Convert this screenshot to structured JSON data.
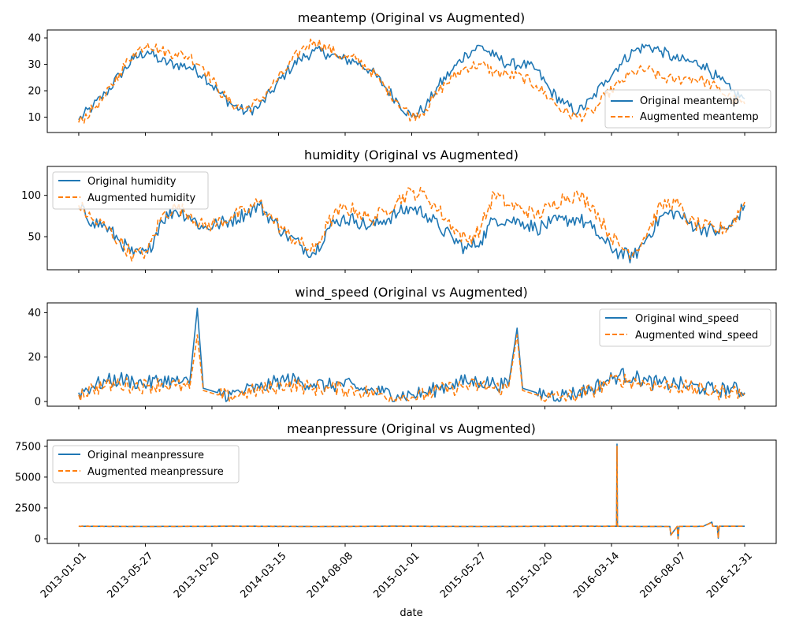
{
  "chart_data": [
    {
      "type": "line",
      "title": "meantemp (Original vs Augmented)",
      "xlabel": "",
      "ylabel": "",
      "xlim": [
        "2012-10-24",
        "2017-03-10"
      ],
      "ylim": [
        4.2,
        43.0
      ],
      "yticks": [
        10,
        20,
        30,
        40
      ],
      "legend": "lower-right",
      "grid": false,
      "series": [
        {
          "name": "Original meantemp",
          "color": "#1f77b4",
          "dash": "solid",
          "x": [
            "2013-01-01",
            "2013-02-01",
            "2013-03-01",
            "2013-04-01",
            "2013-05-01",
            "2013-06-01",
            "2013-07-01",
            "2013-08-01",
            "2013-09-01",
            "2013-10-01",
            "2013-11-01",
            "2013-12-01",
            "2014-01-01",
            "2014-02-01",
            "2014-03-01",
            "2014-04-01",
            "2014-05-01",
            "2014-06-01",
            "2014-07-01",
            "2014-08-01",
            "2014-09-01",
            "2014-10-01",
            "2014-11-01",
            "2014-12-01",
            "2015-01-01",
            "2015-02-01",
            "2015-03-01",
            "2015-04-01",
            "2015-05-01",
            "2015-06-01",
            "2015-07-01",
            "2015-08-01",
            "2015-09-01",
            "2015-10-01",
            "2015-11-01",
            "2015-12-01",
            "2016-01-01",
            "2016-02-01",
            "2016-03-01",
            "2016-04-01",
            "2016-05-01",
            "2016-06-01",
            "2016-07-01",
            "2016-08-01",
            "2016-09-01",
            "2016-10-01",
            "2016-11-01",
            "2016-12-01",
            "2016-12-31"
          ],
          "y": [
            9,
            14,
            19,
            26,
            32,
            35,
            31,
            30,
            29,
            26,
            20,
            15,
            12,
            14,
            20,
            27,
            32,
            35,
            34,
            32,
            31,
            28,
            22,
            16,
            10,
            14,
            22,
            28,
            34,
            37,
            33,
            30,
            30,
            28,
            20,
            15,
            12,
            17,
            24,
            30,
            35,
            37,
            35,
            32,
            31,
            30,
            25,
            20,
            17
          ]
        },
        {
          "name": "Augmented meantemp",
          "color": "#ff7f0e",
          "dash": "dashed",
          "x": [
            "2013-01-01",
            "2013-02-01",
            "2013-03-01",
            "2013-04-01",
            "2013-05-01",
            "2013-06-01",
            "2013-07-01",
            "2013-08-01",
            "2013-09-01",
            "2013-10-01",
            "2013-11-01",
            "2013-12-01",
            "2014-01-01",
            "2014-02-01",
            "2014-03-01",
            "2014-04-01",
            "2014-05-01",
            "2014-06-01",
            "2014-07-01",
            "2014-08-01",
            "2014-09-01",
            "2014-10-01",
            "2014-11-01",
            "2014-12-01",
            "2015-01-01",
            "2015-02-01",
            "2015-03-01",
            "2015-04-01",
            "2015-05-01",
            "2015-06-01",
            "2015-07-01",
            "2015-08-01",
            "2015-09-01",
            "2015-10-01",
            "2015-11-01",
            "2015-12-01",
            "2016-01-01",
            "2016-02-01",
            "2016-03-01",
            "2016-04-01",
            "2016-05-01",
            "2016-06-01",
            "2016-07-01",
            "2016-08-01",
            "2016-09-01",
            "2016-10-01",
            "2016-11-01",
            "2016-12-01",
            "2016-12-31"
          ],
          "y": [
            8,
            13,
            18,
            27,
            34,
            38,
            35,
            34,
            33,
            29,
            21,
            15,
            13,
            16,
            22,
            28,
            35,
            39,
            36,
            33,
            32,
            28,
            22,
            16,
            10,
            13,
            20,
            25,
            29,
            30,
            27,
            26,
            25,
            22,
            17,
            12,
            10,
            12,
            18,
            23,
            27,
            28,
            25,
            24,
            25,
            24,
            21,
            17,
            15
          ]
        }
      ]
    },
    {
      "type": "line",
      "title": "humidity (Original vs Augmented)",
      "xlabel": "",
      "ylabel": "",
      "xlim": [
        "2012-10-24",
        "2017-03-10"
      ],
      "ylim": [
        10,
        135
      ],
      "yticks": [
        50,
        100
      ],
      "legend": "upper-left",
      "grid": false,
      "series": [
        {
          "name": "Original humidity",
          "color": "#1f77b4",
          "dash": "solid",
          "x": [
            "2013-01-01",
            "2013-02-01",
            "2013-03-01",
            "2013-04-01",
            "2013-05-01",
            "2013-06-01",
            "2013-07-01",
            "2013-08-01",
            "2013-09-01",
            "2013-10-01",
            "2013-11-01",
            "2013-12-01",
            "2014-01-01",
            "2014-02-01",
            "2014-03-01",
            "2014-04-01",
            "2014-05-01",
            "2014-06-01",
            "2014-07-01",
            "2014-08-01",
            "2014-09-01",
            "2014-10-01",
            "2014-11-01",
            "2014-12-01",
            "2015-01-01",
            "2015-02-01",
            "2015-03-01",
            "2015-04-01",
            "2015-05-01",
            "2015-06-01",
            "2015-07-01",
            "2015-08-01",
            "2015-09-01",
            "2015-10-01",
            "2015-11-01",
            "2015-12-01",
            "2016-01-01",
            "2016-02-01",
            "2016-03-01",
            "2016-04-01",
            "2016-05-01",
            "2016-06-01",
            "2016-07-01",
            "2016-08-01",
            "2016-09-01",
            "2016-10-01",
            "2016-11-01",
            "2016-12-01",
            "2016-12-31"
          ],
          "y": [
            85,
            68,
            62,
            45,
            28,
            30,
            70,
            82,
            75,
            60,
            65,
            70,
            78,
            88,
            70,
            52,
            40,
            30,
            60,
            72,
            70,
            62,
            70,
            78,
            85,
            78,
            62,
            48,
            35,
            45,
            72,
            70,
            68,
            60,
            66,
            70,
            72,
            60,
            42,
            30,
            25,
            50,
            75,
            80,
            66,
            60,
            56,
            62,
            88
          ]
        },
        {
          "name": "Augmented humidity",
          "color": "#ff7f0e",
          "dash": "dashed",
          "x": [
            "2013-01-01",
            "2013-02-01",
            "2013-03-01",
            "2013-04-01",
            "2013-05-01",
            "2013-06-01",
            "2013-07-01",
            "2013-08-01",
            "2013-09-01",
            "2013-10-01",
            "2013-11-01",
            "2013-12-01",
            "2014-01-01",
            "2014-02-01",
            "2014-03-01",
            "2014-04-01",
            "2014-05-01",
            "2014-06-01",
            "2014-07-01",
            "2014-08-01",
            "2014-09-01",
            "2014-10-01",
            "2014-11-01",
            "2014-12-01",
            "2015-01-01",
            "2015-02-01",
            "2015-03-01",
            "2015-04-01",
            "2015-05-01",
            "2015-06-01",
            "2015-07-01",
            "2015-08-01",
            "2015-09-01",
            "2015-10-01",
            "2015-11-01",
            "2015-12-01",
            "2016-01-01",
            "2016-02-01",
            "2016-03-01",
            "2016-04-01",
            "2016-05-01",
            "2016-06-01",
            "2016-07-01",
            "2016-08-01",
            "2016-09-01",
            "2016-10-01",
            "2016-11-01",
            "2016-12-01",
            "2016-12-31"
          ],
          "y": [
            88,
            70,
            62,
            44,
            27,
            32,
            74,
            86,
            78,
            62,
            67,
            74,
            80,
            92,
            72,
            54,
            42,
            32,
            66,
            84,
            82,
            70,
            80,
            94,
            104,
            100,
            82,
            62,
            45,
            60,
            102,
            88,
            84,
            76,
            86,
            98,
            100,
            88,
            60,
            38,
            30,
            56,
            88,
            92,
            68,
            62,
            58,
            64,
            92
          ]
        }
      ]
    },
    {
      "type": "line",
      "title": "wind_speed (Original vs Augmented)",
      "xlabel": "",
      "ylabel": "",
      "xlim": [
        "2012-10-24",
        "2017-03-10"
      ],
      "ylim": [
        -2.1,
        44.4
      ],
      "yticks": [
        0,
        20,
        40
      ],
      "legend": "upper-right",
      "grid": false,
      "series": [
        {
          "name": "Original wind_speed",
          "color": "#1f77b4",
          "dash": "solid",
          "x": [
            "2013-01-01",
            "2013-02-01",
            "2013-03-01",
            "2013-04-01",
            "2013-05-01",
            "2013-06-01",
            "2013-07-01",
            "2013-08-01",
            "2013-09-01",
            "2013-09-18",
            "2013-10-01",
            "2013-11-01",
            "2013-12-01",
            "2014-01-01",
            "2014-02-01",
            "2014-03-01",
            "2014-04-01",
            "2014-05-01",
            "2014-06-01",
            "2014-07-01",
            "2014-08-01",
            "2014-09-01",
            "2014-10-01",
            "2014-11-01",
            "2014-12-01",
            "2015-01-01",
            "2015-02-01",
            "2015-03-01",
            "2015-04-01",
            "2015-05-01",
            "2015-06-01",
            "2015-07-01",
            "2015-08-01",
            "2015-08-20",
            "2015-09-01",
            "2015-10-01",
            "2015-11-01",
            "2015-12-01",
            "2016-01-01",
            "2016-02-01",
            "2016-03-01",
            "2016-04-01",
            "2016-05-01",
            "2016-06-01",
            "2016-07-01",
            "2016-08-01",
            "2016-09-01",
            "2016-10-01",
            "2016-11-01",
            "2016-12-01",
            "2016-12-31"
          ],
          "y": [
            4,
            7,
            9,
            10,
            9,
            8,
            10,
            9,
            8,
            42,
            6,
            4,
            3,
            5,
            6,
            8,
            10,
            9,
            8,
            7,
            8,
            6,
            5,
            4,
            3,
            3,
            4,
            6,
            8,
            9,
            9,
            8,
            7,
            33,
            6,
            4,
            3,
            3,
            4,
            6,
            9,
            12,
            11,
            9,
            8,
            8,
            7,
            6,
            5,
            6,
            4
          ]
        },
        {
          "name": "Augmented wind_speed",
          "color": "#ff7f0e",
          "dash": "dashed",
          "x": [
            "2013-01-01",
            "2013-02-01",
            "2013-03-01",
            "2013-04-01",
            "2013-05-01",
            "2013-06-01",
            "2013-07-01",
            "2013-08-01",
            "2013-09-01",
            "2013-09-18",
            "2013-10-01",
            "2013-11-01",
            "2013-12-01",
            "2014-01-01",
            "2014-02-01",
            "2014-03-01",
            "2014-04-01",
            "2014-05-01",
            "2014-06-01",
            "2014-07-01",
            "2014-08-01",
            "2014-09-01",
            "2014-10-01",
            "2014-11-01",
            "2014-12-01",
            "2015-01-01",
            "2015-02-01",
            "2015-03-01",
            "2015-04-01",
            "2015-05-01",
            "2015-06-01",
            "2015-07-01",
            "2015-08-01",
            "2015-08-20",
            "2015-09-01",
            "2015-10-01",
            "2015-11-01",
            "2015-12-01",
            "2016-01-01",
            "2016-02-01",
            "2016-03-01",
            "2016-04-01",
            "2016-05-01",
            "2016-06-01",
            "2016-07-01",
            "2016-08-01",
            "2016-09-01",
            "2016-10-01",
            "2016-11-01",
            "2016-12-01",
            "2016-12-31"
          ],
          "y": [
            3,
            6,
            7,
            8,
            7,
            7,
            8,
            7,
            6,
            30,
            5,
            3,
            2,
            4,
            5,
            6,
            8,
            7,
            6,
            6,
            6,
            5,
            4,
            3,
            2,
            2,
            3,
            5,
            6,
            7,
            7,
            6,
            6,
            30,
            5,
            3,
            2,
            2,
            3,
            5,
            8,
            10,
            9,
            8,
            7,
            7,
            6,
            5,
            4,
            5,
            3
          ]
        }
      ]
    },
    {
      "type": "line",
      "title": "meanpressure (Original vs Augmented)",
      "xlabel": "date",
      "ylabel": "",
      "xlim": [
        "2012-10-24",
        "2017-03-10"
      ],
      "ylim": [
        -380,
        8000
      ],
      "yticks": [
        0,
        2500,
        5000,
        7500
      ],
      "xticks": [
        "2013-01-01",
        "2013-05-27",
        "2013-10-20",
        "2014-03-15",
        "2014-08-08",
        "2015-01-01",
        "2015-05-27",
        "2015-10-20",
        "2016-03-14",
        "2016-08-07",
        "2016-12-31"
      ],
      "legend": "upper-left",
      "grid": false,
      "series": [
        {
          "name": "Original meanpressure",
          "color": "#1f77b4",
          "dash": "solid",
          "x": [
            "2013-01-01",
            "2013-06-01",
            "2013-12-01",
            "2014-06-01",
            "2014-12-01",
            "2015-06-01",
            "2015-12-01",
            "2016-03-25",
            "2016-03-26",
            "2016-03-27",
            "2016-06-01",
            "2016-07-20",
            "2016-07-22",
            "2016-08-05",
            "2016-08-07",
            "2016-08-09",
            "2016-09-01",
            "2016-10-01",
            "2016-10-20",
            "2016-10-22",
            "2016-11-01",
            "2016-11-03",
            "2016-11-05",
            "2016-12-31"
          ],
          "y": [
            1015,
            1000,
            1018,
            998,
            1017,
            999,
            1016,
            1014,
            7680,
            1012,
            1002,
            1000,
            300,
            1003,
            0,
            1005,
            1008,
            1010,
            1350,
            1012,
            1015,
            50,
            1016,
            1017
          ]
        },
        {
          "name": "Augmented meanpressure",
          "color": "#ff7f0e",
          "dash": "dashed",
          "x": [
            "2013-01-01",
            "2013-06-01",
            "2013-12-01",
            "2014-06-01",
            "2014-12-01",
            "2015-06-01",
            "2015-12-01",
            "2016-03-25",
            "2016-03-26",
            "2016-03-27",
            "2016-06-01",
            "2016-07-20",
            "2016-07-22",
            "2016-08-05",
            "2016-08-07",
            "2016-08-09",
            "2016-09-01",
            "2016-10-01",
            "2016-10-20",
            "2016-10-22",
            "2016-11-01",
            "2016-11-03",
            "2016-11-05",
            "2016-12-31"
          ],
          "y": [
            1012,
            998,
            1015,
            996,
            1014,
            997,
            1013,
            1012,
            7500,
            1010,
            1000,
            998,
            290,
            1001,
            0,
            1003,
            1006,
            1008,
            1320,
            1010,
            1013,
            60,
            1014,
            1015
          ]
        }
      ]
    }
  ]
}
